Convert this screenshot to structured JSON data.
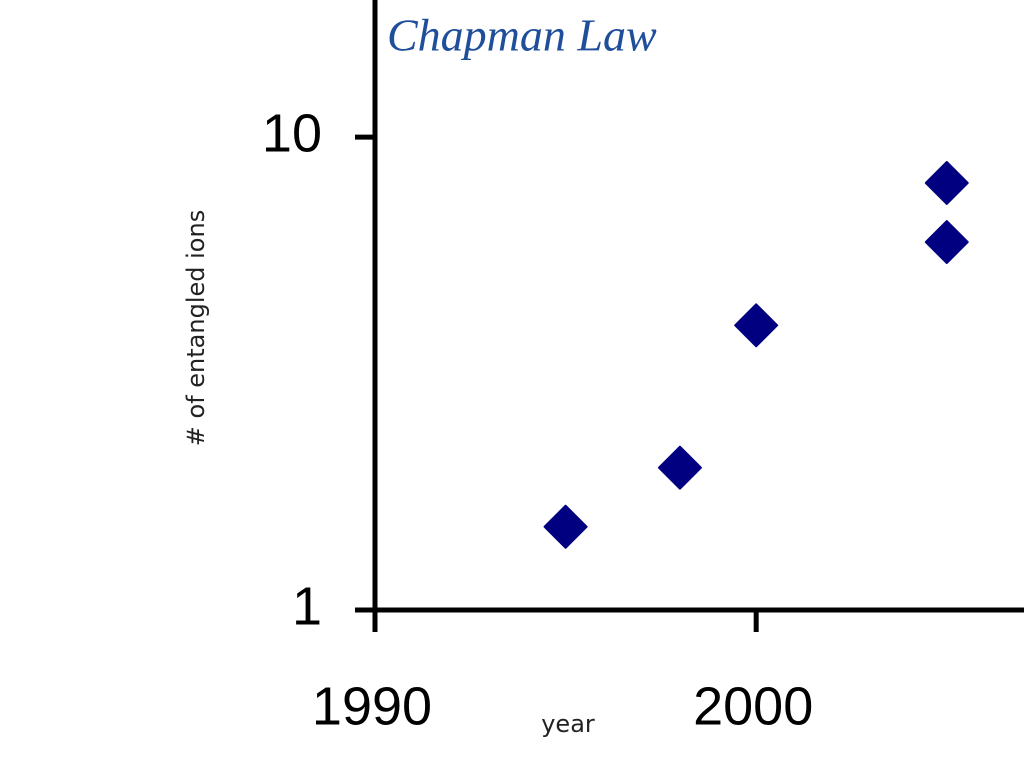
{
  "chart_data": {
    "type": "scatter",
    "title": "Chapman Law",
    "y_label": "# of entangled ions",
    "x_label": "year",
    "x": [
      1995,
      1998,
      2000,
      2005,
      2005
    ],
    "values": [
      1.5,
      2,
      4,
      6,
      8
    ],
    "color": "#000080",
    "xlim": [
      1990,
      2007
    ],
    "xticks": [
      1990,
      2000
    ],
    "ylim": [
      1,
      19.5
    ],
    "yticks": [
      1,
      10
    ],
    "log_y": true,
    "grid": false
  }
}
